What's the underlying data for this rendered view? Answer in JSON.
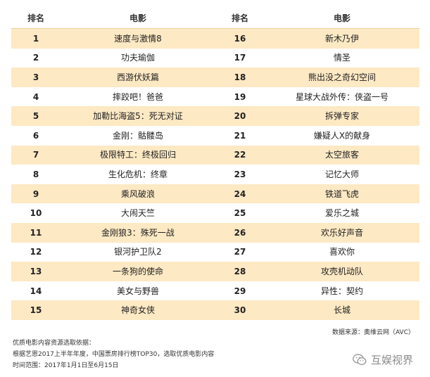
{
  "table": {
    "headers": [
      "排名",
      "电影",
      "排名",
      "电影"
    ],
    "rows": [
      [
        "1",
        "速度与激情8",
        "16",
        "新木乃伊"
      ],
      [
        "2",
        "功夫瑜伽",
        "17",
        "情圣"
      ],
      [
        "3",
        "西游伏妖篇",
        "18",
        "熊出没之奇幻空间"
      ],
      [
        "4",
        "摔跤吧！爸爸",
        "19",
        "星球大战外传：侠盗一号"
      ],
      [
        "5",
        "加勒比海盗5：死无对证",
        "20",
        "拆弹专家"
      ],
      [
        "6",
        "金刚：骷髅岛",
        "21",
        "嫌疑人X的献身"
      ],
      [
        "7",
        "极限特工：终极回归",
        "22",
        "太空旅客"
      ],
      [
        "8",
        "生化危机：终章",
        "23",
        "记忆大师"
      ],
      [
        "9",
        "乘风破浪",
        "24",
        "铁道飞虎"
      ],
      [
        "10",
        "大闹天竺",
        "25",
        "爱乐之城"
      ],
      [
        "11",
        "金刚狼3：殊死一战",
        "26",
        "欢乐好声音"
      ],
      [
        "12",
        "银河护卫队2",
        "27",
        "喜欢你"
      ],
      [
        "13",
        "一条狗的使命",
        "28",
        "攻壳机动队"
      ],
      [
        "14",
        "美女与野兽",
        "29",
        "异性：契约"
      ],
      [
        "15",
        "神奇女侠",
        "30",
        "长城"
      ]
    ]
  },
  "source": "数据来源：奥维云网（AVC）",
  "notes": [
    "优质电影内容资源选取依据：",
    "根据艺恩2017上半年年度，中国票房排行榜TOP30，选取优质电影内容",
    "时间范围：2017年1月1日至6月15日"
  ],
  "watermark": {
    "text": "互娱视界",
    "icon": "wechat-icon"
  },
  "colors": {
    "stripe": "#fde9c4",
    "text": "#222222"
  }
}
